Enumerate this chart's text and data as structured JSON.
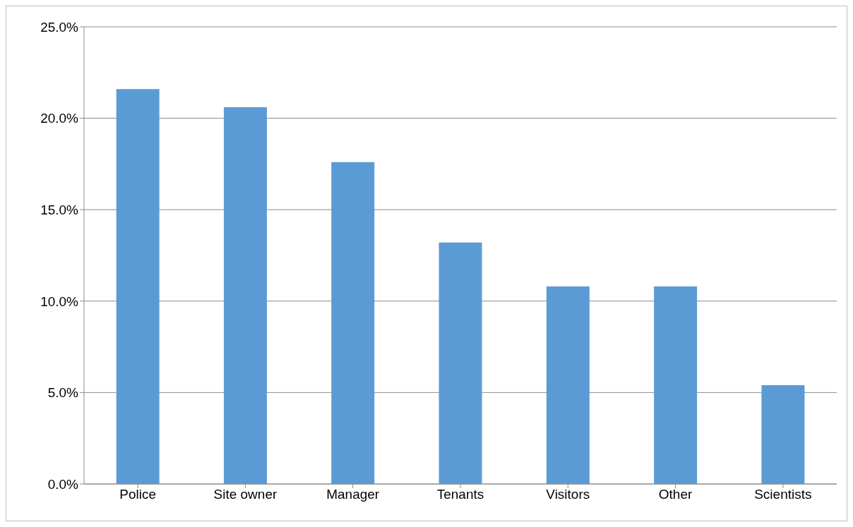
{
  "chart_data": {
    "type": "bar",
    "categories": [
      "Police",
      "Site owner",
      "Manager",
      "Tenants",
      "Visitors",
      "Other",
      "Scientists"
    ],
    "values": [
      21.6,
      20.6,
      17.6,
      13.2,
      10.8,
      10.8,
      5.4
    ],
    "color": "#5b9bd5",
    "ylim": [
      0,
      25
    ],
    "yticks": [
      {
        "value": 0,
        "label": "0.0%"
      },
      {
        "value": 5,
        "label": "5.0%"
      },
      {
        "value": 10,
        "label": "10.0%"
      },
      {
        "value": 15,
        "label": "15.0%"
      },
      {
        "value": 20,
        "label": "20.0%"
      },
      {
        "value": 25,
        "label": "25.0%"
      }
    ],
    "grid": "y"
  }
}
